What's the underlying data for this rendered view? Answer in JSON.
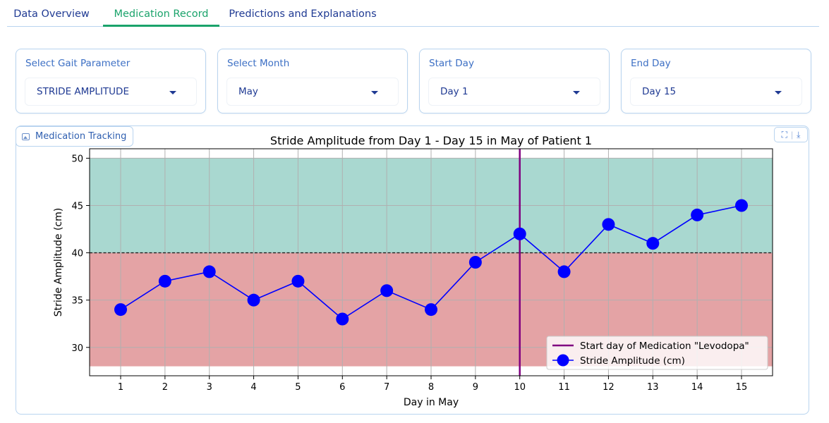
{
  "tabs": [
    {
      "label": "Data Overview",
      "active": false
    },
    {
      "label": "Medication Record",
      "active": true
    },
    {
      "label": "Predictions and Explanations",
      "active": false
    }
  ],
  "filters": [
    {
      "label": "Select Gait Parameter",
      "value": "STRIDE AMPLITUDE"
    },
    {
      "label": "Select Month",
      "value": "May"
    },
    {
      "label": "Start Day",
      "value": "Day 1"
    },
    {
      "label": "End Day",
      "value": "Day 15"
    }
  ],
  "chart_panel": {
    "tag_label": "Medication Tracking",
    "tag_icon": "image-icon",
    "tools": [
      "fullscreen-icon",
      "download-icon"
    ]
  },
  "colors": {
    "tab_active": "#1aa36b",
    "tab_text": "#1f3a93",
    "series": "#0000ff",
    "medication_line": "#800080",
    "zone_above": "#a9d8d0",
    "zone_below": "#e4a3a5"
  },
  "chart_data": {
    "type": "line",
    "title": "Stride Amplitude from Day 1 - Day 15 in May of Patient 1",
    "xlabel": "Day in May",
    "ylabel": "Stride Amplitude (cm)",
    "xlim": [
      0.3,
      15.7
    ],
    "ylim": [
      27,
      51
    ],
    "x_ticks": [
      1,
      2,
      3,
      4,
      5,
      6,
      7,
      8,
      9,
      10,
      11,
      12,
      13,
      14,
      15
    ],
    "y_ticks": [
      30,
      35,
      40,
      45,
      50
    ],
    "grid": true,
    "threshold": 40,
    "bands": [
      {
        "from": 40,
        "to": 50,
        "color": "#a9d8d0"
      },
      {
        "from": 28,
        "to": 40,
        "color": "#e4a3a5"
      }
    ],
    "vline": {
      "x": 10,
      "name": "Start day of Medication \"Levodopa\"",
      "color": "#800080"
    },
    "series": [
      {
        "name": "Stride Amplitude (cm)",
        "x": [
          1,
          2,
          3,
          4,
          5,
          6,
          7,
          8,
          9,
          10,
          11,
          12,
          13,
          14,
          15
        ],
        "values": [
          34,
          37,
          38,
          35,
          37,
          33,
          36,
          34,
          39,
          42,
          38,
          43,
          41,
          44,
          45
        ],
        "color": "#0000ff"
      }
    ],
    "legend": "bottom-right"
  }
}
